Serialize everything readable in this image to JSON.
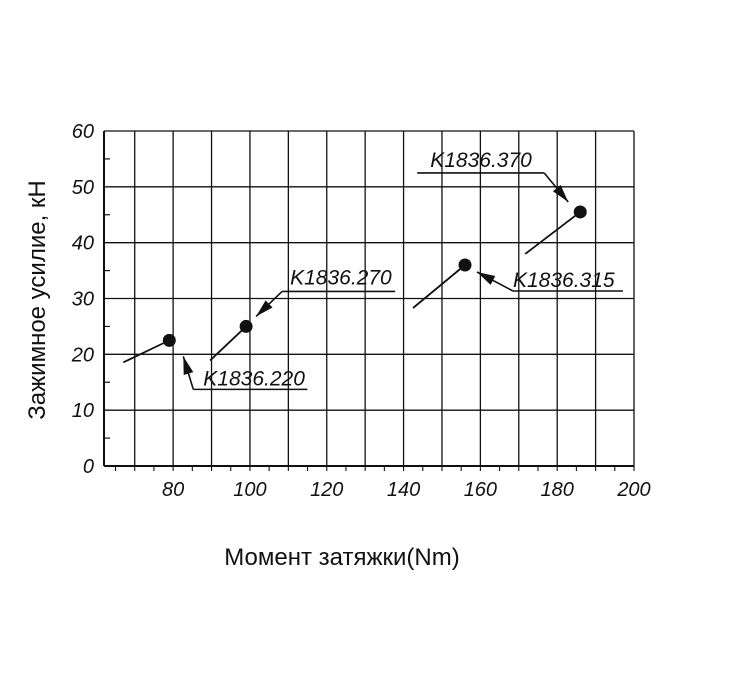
{
  "chart_data": {
    "type": "scatter",
    "xlabel": "Момент затяжки(Nm)",
    "ylabel": "Зажимное усилие, кН",
    "xlim": [
      62,
      200
    ],
    "ylim": [
      0,
      60
    ],
    "x_ticks": [
      80,
      100,
      120,
      140,
      160,
      180,
      200
    ],
    "y_ticks": [
      0,
      10,
      20,
      30,
      40,
      50,
      60
    ],
    "grid": true,
    "points": [
      {
        "label": "K1836.220",
        "x": 79,
        "y": 22.5
      },
      {
        "label": "K1836.270",
        "x": 99,
        "y": 25
      },
      {
        "label": "K1836.315",
        "x": 156,
        "y": 36
      },
      {
        "label": "K1836.370",
        "x": 186,
        "y": 45.5
      }
    ],
    "colors": {
      "line": "#111111",
      "point": "#111111"
    }
  }
}
